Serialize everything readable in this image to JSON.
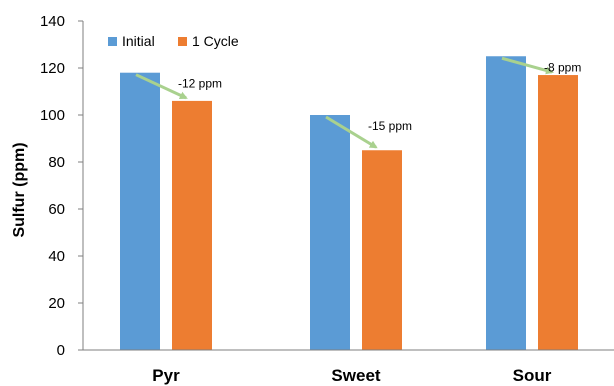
{
  "chart_data": {
    "type": "bar",
    "categories": [
      "Pyr",
      "Sweet",
      "Sour"
    ],
    "series": [
      {
        "name": "Initial",
        "values": [
          118,
          100,
          125
        ],
        "color": "#5B9BD5"
      },
      {
        "name": "1 Cycle",
        "values": [
          106,
          85,
          117
        ],
        "color": "#ED7D31"
      }
    ],
    "ylabel": "Sulfur (ppm)",
    "xlabel": "",
    "ylim": [
      0,
      140
    ],
    "yticks": [
      "0",
      "20",
      "40",
      "60",
      "80",
      "100",
      "120",
      "140"
    ],
    "grid": false,
    "legend_position": "top-left",
    "annotations": [
      {
        "category": "Pyr",
        "text": "-12 ppm"
      },
      {
        "category": "Sweet",
        "text": "-15 ppm"
      },
      {
        "category": "Sour",
        "text": "-8 ppm"
      }
    ],
    "arrow_color": "#A9D18E"
  }
}
